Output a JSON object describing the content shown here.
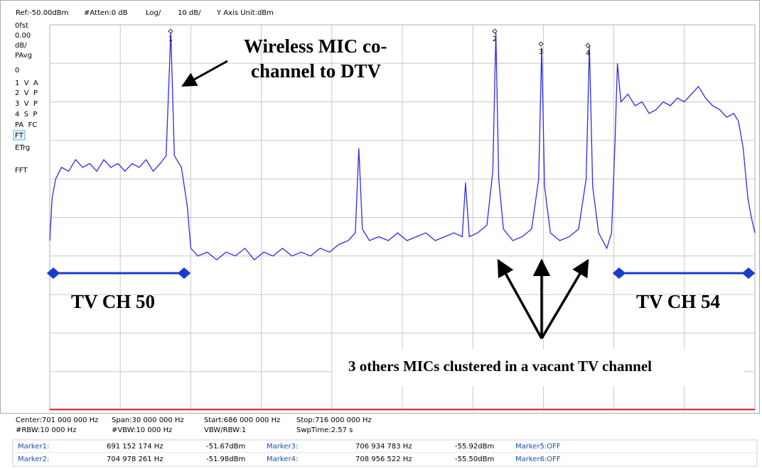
{
  "header": [
    "Ref:-50.00dBm",
    "#Atten:0 dB",
    "Log/",
    "10 dB/",
    "Y Axis Unit:dBm"
  ],
  "side_panel": [
    "0fst",
    "0.00",
    "dB/",
    "PAvg",
    "0",
    "1  V  A",
    "2  V  P",
    "3  V  P",
    "4  S  P",
    "PA  FC",
    "FT",
    "ETrg",
    "FFT"
  ],
  "markers": [
    "1",
    "2",
    "3",
    "4"
  ],
  "annotations": {
    "mic_line1": "Wireless MIC co-",
    "mic_line2": "channel to DTV",
    "ch50": "TV CH 50",
    "ch54": "TV CH 54",
    "cluster": "3 others MICs clustered in a vacant TV channel"
  },
  "footer": [
    [
      "Center:701 000 000 Hz",
      "Span:30 000 000 Hz",
      "Start:686 000 000 Hz",
      "Stop:716 000 000 Hz"
    ],
    [
      "#RBW:10 000 Hz",
      "#VBW:10 000 Hz",
      "VBW/RBW:1",
      "SwpTime:2.57 s"
    ]
  ],
  "marker_table": [
    [
      "Marker1:",
      "691 152 174 Hz",
      "-51.67dBm",
      "Marker3:",
      "706 934 783 Hz",
      "-55.92dBm",
      "Marker5:OFF"
    ],
    [
      "Marker2:",
      "704 978 261 Hz",
      "-51.98dBm",
      "Marker4:",
      "708 956 522 Hz",
      "-55.50dBm",
      "Marker6:OFF"
    ]
  ],
  "chart_data": {
    "type": "line",
    "color": "#2b2bee",
    "xlim": [
      686000000,
      716000000
    ],
    "ylim": [
      -150,
      -50
    ],
    "x": [
      686000000,
      686100000,
      686250000,
      686500000,
      686800000,
      687100000,
      687400000,
      687700000,
      688000000,
      688300000,
      688600000,
      688900000,
      689200000,
      689500000,
      689800000,
      690100000,
      690400000,
      690700000,
      690950000,
      691150000,
      691300000,
      691600000,
      691850000,
      692000000,
      692300000,
      692700000,
      693100000,
      693500000,
      693900000,
      694300000,
      694700000,
      695100000,
      695500000,
      695900000,
      696300000,
      696700000,
      697100000,
      697500000,
      697900000,
      698300000,
      698700000,
      699000000,
      699150000,
      699300000,
      699600000,
      700000000,
      700400000,
      700800000,
      701200000,
      701600000,
      702000000,
      702400000,
      702800000,
      703200000,
      703550000,
      703690000,
      703850000,
      704200000,
      704600000,
      704850000,
      704980000,
      705100000,
      705300000,
      705700000,
      706100000,
      706500000,
      706800000,
      706930000,
      707050000,
      707300000,
      707700000,
      708100000,
      708500000,
      708820000,
      708960000,
      709100000,
      709350000,
      709700000,
      709900000,
      710050000,
      710150000,
      710300000,
      710600000,
      710900000,
      711200000,
      711500000,
      711800000,
      712100000,
      712400000,
      712700000,
      713000000,
      713300000,
      713600000,
      713900000,
      714200000,
      714500000,
      714800000,
      715100000,
      715300000,
      715500000,
      715700000,
      715850000,
      716000000
    ],
    "values": [
      -106,
      -95,
      -90,
      -87,
      -88,
      -85,
      -87,
      -86,
      -88,
      -85,
      -87,
      -86,
      -88,
      -86,
      -87,
      -85,
      -88,
      -86,
      -84,
      -51.67,
      -84,
      -87,
      -97,
      -108,
      -110,
      -109,
      -111,
      -109,
      -110,
      -108,
      -111,
      -109,
      -110,
      -108,
      -110,
      -109,
      -110,
      -108,
      -109,
      -107,
      -106,
      -104,
      -82,
      -103,
      -106,
      -105,
      -106,
      -104,
      -106,
      -105,
      -104,
      -106,
      -105,
      -104,
      -105,
      -91,
      -105,
      -104,
      -102,
      -88,
      -51.98,
      -90,
      -103,
      -106,
      -105,
      -103,
      -90,
      -55.92,
      -92,
      -104,
      -106,
      -105,
      -103,
      -90,
      -55.5,
      -92,
      -104,
      -108,
      -104,
      -80,
      -60,
      -70,
      -68,
      -71,
      -70,
      -73,
      -72,
      -70,
      -71,
      -69,
      -70,
      -68,
      -66,
      -69,
      -71,
      -72,
      -74,
      -73,
      -75,
      -82,
      -95,
      -100,
      -104
    ]
  }
}
